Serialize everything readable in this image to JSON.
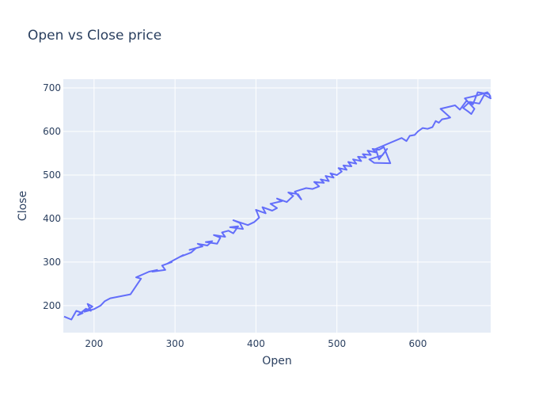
{
  "chart_data": {
    "type": "line",
    "title": "Open vs Close price",
    "xlabel": "Open",
    "ylabel": "Close",
    "xlim": [
      162,
      690
    ],
    "ylim": [
      138,
      720
    ],
    "xticks": [
      200,
      300,
      400,
      500,
      600
    ],
    "yticks": [
      200,
      300,
      400,
      500,
      600,
      700
    ],
    "grid": true,
    "legend": "none",
    "colors": {
      "line": "#636efa",
      "plot_bg": "#e5ecf6",
      "grid": "#ffffff",
      "text": "#2a3f5f"
    },
    "series": [
      {
        "points": [
          [
            163,
            175
          ],
          [
            172,
            168
          ],
          [
            178,
            188
          ],
          [
            186,
            183
          ],
          [
            180,
            178
          ],
          [
            190,
            193
          ],
          [
            196,
            188
          ],
          [
            192,
            204
          ],
          [
            198,
            198
          ],
          [
            188,
            186
          ],
          [
            200,
            192
          ],
          [
            208,
            200
          ],
          [
            213,
            210
          ],
          [
            220,
            217
          ],
          [
            245,
            226
          ],
          [
            258,
            262
          ],
          [
            252,
            265
          ],
          [
            268,
            278
          ],
          [
            278,
            282
          ],
          [
            272,
            278
          ],
          [
            288,
            282
          ],
          [
            284,
            292
          ],
          [
            296,
            300
          ],
          [
            290,
            296
          ],
          [
            300,
            306
          ],
          [
            310,
            316
          ],
          [
            306,
            312
          ],
          [
            320,
            322
          ],
          [
            326,
            332
          ],
          [
            318,
            328
          ],
          [
            334,
            336
          ],
          [
            328,
            342
          ],
          [
            340,
            338
          ],
          [
            346,
            348
          ],
          [
            338,
            346
          ],
          [
            352,
            342
          ],
          [
            356,
            356
          ],
          [
            348,
            362
          ],
          [
            362,
            358
          ],
          [
            358,
            368
          ],
          [
            366,
            372
          ],
          [
            372,
            366
          ],
          [
            378,
            382
          ],
          [
            368,
            380
          ],
          [
            384,
            376
          ],
          [
            380,
            390
          ],
          [
            372,
            396
          ],
          [
            390,
            385
          ],
          [
            398,
            392
          ],
          [
            404,
            402
          ],
          [
            400,
            420
          ],
          [
            412,
            412
          ],
          [
            408,
            426
          ],
          [
            420,
            418
          ],
          [
            426,
            424
          ],
          [
            418,
            434
          ],
          [
            432,
            440
          ],
          [
            426,
            446
          ],
          [
            438,
            438
          ],
          [
            446,
            452
          ],
          [
            440,
            460
          ],
          [
            452,
            456
          ],
          [
            456,
            444
          ],
          [
            448,
            462
          ],
          [
            462,
            470
          ],
          [
            470,
            468
          ],
          [
            478,
            474
          ],
          [
            472,
            484
          ],
          [
            484,
            482
          ],
          [
            480,
            490
          ],
          [
            490,
            486
          ],
          [
            486,
            498
          ],
          [
            496,
            494
          ],
          [
            492,
            504
          ],
          [
            500,
            500
          ],
          [
            506,
            508
          ],
          [
            502,
            516
          ],
          [
            512,
            512
          ],
          [
            508,
            522
          ],
          [
            518,
            520
          ],
          [
            514,
            530
          ],
          [
            524,
            526
          ],
          [
            520,
            536
          ],
          [
            530,
            532
          ],
          [
            526,
            542
          ],
          [
            536,
            540
          ],
          [
            532,
            548
          ],
          [
            542,
            546
          ],
          [
            538,
            556
          ],
          [
            548,
            552
          ],
          [
            544,
            560
          ],
          [
            552,
            558
          ],
          [
            558,
            564
          ],
          [
            566,
            527
          ],
          [
            546,
            528
          ],
          [
            540,
            536
          ],
          [
            556,
            545
          ],
          [
            562,
            560
          ],
          [
            552,
            536
          ],
          [
            548,
            560
          ],
          [
            580,
            585
          ],
          [
            586,
            578
          ],
          [
            590,
            590
          ],
          [
            596,
            592
          ],
          [
            600,
            600
          ],
          [
            606,
            608
          ],
          [
            612,
            606
          ],
          [
            618,
            610
          ],
          [
            622,
            624
          ],
          [
            626,
            620
          ],
          [
            630,
            628
          ],
          [
            636,
            630
          ],
          [
            640,
            632
          ],
          [
            628,
            652
          ],
          [
            646,
            660
          ],
          [
            652,
            650
          ],
          [
            660,
            670
          ],
          [
            668,
            662
          ],
          [
            674,
            690
          ],
          [
            688,
            686
          ],
          [
            690,
            676
          ],
          [
            682,
            684
          ],
          [
            676,
            664
          ],
          [
            664,
            668
          ],
          [
            656,
            654
          ],
          [
            662,
            646
          ],
          [
            666,
            640
          ],
          [
            670,
            652
          ],
          [
            658,
            676
          ],
          [
            672,
            682
          ],
          [
            686,
            690
          ],
          [
            690,
            680
          ]
        ]
      }
    ]
  }
}
